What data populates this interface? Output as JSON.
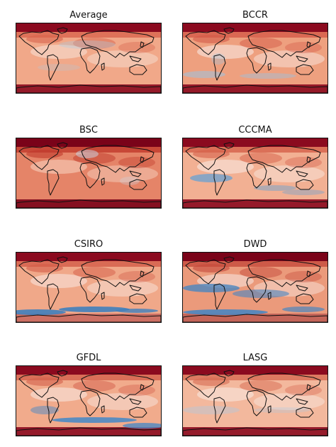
{
  "panels": [
    {
      "title": "Average",
      "palette": {
        "base": "#f1a889",
        "warm": "#d9644d",
        "hot": "#8b0a1f",
        "cool": "#f6ddd1",
        "cold": "#aacbe3"
      }
    },
    {
      "title": "BCCR",
      "palette": {
        "base": "#eea07f",
        "warm": "#d45a48",
        "hot": "#8b0a1f",
        "cool": "#f8e6df",
        "cold": "#9cc2e0"
      }
    },
    {
      "title": "BSC",
      "palette": {
        "base": "#e58468",
        "warm": "#c0392b",
        "hot": "#7a0319",
        "cool": "#f6cfbd",
        "cold": "#c8dcec"
      }
    },
    {
      "title": "CCCMA",
      "palette": {
        "base": "#f2b093",
        "warm": "#d5604a",
        "hot": "#8b0a1f",
        "cool": "#f8e7e0",
        "cold": "#6fa3cf"
      }
    },
    {
      "title": "CSIRO",
      "palette": {
        "base": "#f0a889",
        "warm": "#d35b48",
        "hot": "#8b0a1f",
        "cool": "#f8e3db",
        "cold": "#3f7fbe"
      }
    },
    {
      "title": "DWD",
      "palette": {
        "base": "#eb9a7b",
        "warm": "#c54a3c",
        "hot": "#7a0319",
        "cool": "#f7e2da",
        "cold": "#4a86c1"
      }
    },
    {
      "title": "GFDL",
      "palette": {
        "base": "#f1ab8c",
        "warm": "#d4604b",
        "hot": "#8b0a1f",
        "cool": "#f8e6de",
        "cold": "#4d8ac3"
      }
    },
    {
      "title": "LASG",
      "palette": {
        "base": "#f3b89d",
        "warm": "#d76a52",
        "hot": "#8b0a1f",
        "cool": "#f8e6de",
        "cold": "#a9cbe3"
      }
    }
  ]
}
